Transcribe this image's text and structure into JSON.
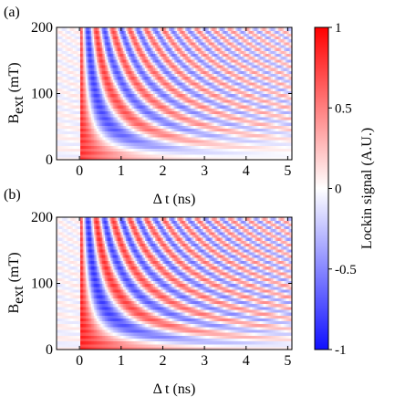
{
  "chart_data": [
    {
      "type": "heatmap",
      "panel_label": "(a)",
      "xlabel": "Δ t (ns)",
      "ylabel_main": "B",
      "ylabel_sub": "ext",
      "ylabel_unit": "(mT)",
      "xlim": [
        -0.55,
        5.1
      ],
      "ylim": [
        0,
        200
      ],
      "xticks": [
        0,
        1,
        2,
        3,
        4,
        5
      ],
      "yticks": [
        0,
        100,
        200
      ],
      "xticklabels": [
        "0",
        "1",
        "2",
        "3",
        "4",
        "5"
      ],
      "yticklabels": [
        "0",
        "100",
        "200"
      ],
      "model": {
        "pre_pump_amplitude": 0.12,
        "pump_time_ns": 0.0,
        "amplitude": 0.85,
        "decay_time_ns": 6.0,
        "zero_field_damping_ns": 1.6,
        "precession_GHz_per_mT": 0.0125,
        "offset_GHz": 0.01,
        "row_count": 46
      }
    },
    {
      "type": "heatmap",
      "panel_label": "(b)",
      "xlabel": "Δ t (ns)",
      "ylabel_main": "B",
      "ylabel_sub": "ext",
      "ylabel_unit": "(mT)",
      "xlim": [
        -0.55,
        5.1
      ],
      "ylim": [
        0,
        200
      ],
      "xticks": [
        0,
        1,
        2,
        3,
        4,
        5
      ],
      "yticks": [
        0,
        100,
        200
      ],
      "xticklabels": [
        "0",
        "1",
        "2",
        "3",
        "4",
        "5"
      ],
      "yticklabels": [
        "0",
        "100",
        "200"
      ],
      "model": {
        "pre_pump_amplitude": 0.12,
        "pump_time_ns": 0.0,
        "amplitude": 0.9,
        "decay_time_ns": 7.0,
        "zero_field_damping_ns": 3.0,
        "precession_GHz_per_mT": 0.0125,
        "offset_GHz": 0.0,
        "row_count": 46
      }
    }
  ],
  "colorbar": {
    "label": "Lockin signal (A.U.)",
    "range": [
      -1,
      1
    ],
    "ticks": [
      1,
      0.5,
      0,
      -0.5,
      -1
    ],
    "ticklabels": [
      "1",
      "0.5",
      "0",
      "-0.5",
      "-1"
    ],
    "colors": {
      "low": "#1010ff",
      "mid": "#ffffff",
      "high": "#ff0000"
    }
  }
}
